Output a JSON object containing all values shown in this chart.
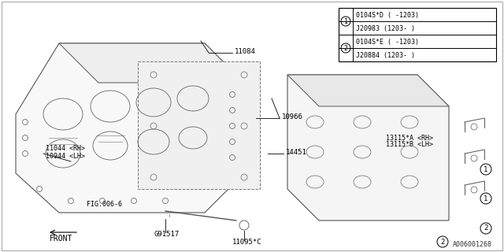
{
  "title": "",
  "background_color": "#ffffff",
  "border_color": "#000000",
  "image_id": "A006001268",
  "legend_table": {
    "items": [
      {
        "circle_num": "1",
        "rows": [
          "0104S*D ( -1203)",
          "J20983 (1203- )"
        ]
      },
      {
        "circle_num": "2",
        "rows": [
          "0104S*E ( -1203)",
          "J20884 (1203- )"
        ]
      }
    ]
  },
  "parts_labels": [
    "11084",
    "10966",
    "14451",
    "11044 <RH>",
    "10944 <LH>",
    "FIG.006-6",
    "G91517",
    "11095*C",
    "13115*A <RH>",
    "13115*B <LH>"
  ],
  "front_label": "FRONT",
  "fig_width": 6.4,
  "fig_height": 3.2,
  "dpi": 100
}
